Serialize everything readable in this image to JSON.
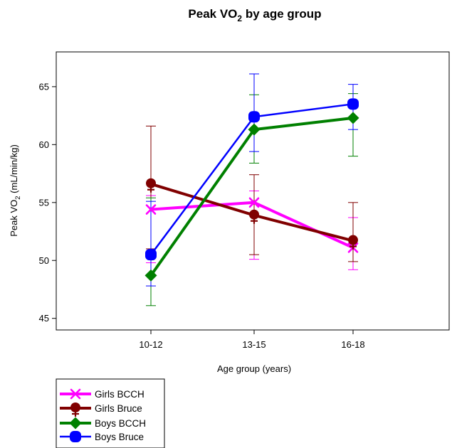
{
  "chart_data": {
    "type": "line",
    "title": {
      "main": "Peak VO",
      "sub": "2",
      "rest": " by age group"
    },
    "xlabel": "Age group (years)",
    "ylabel": {
      "main": "Peak VO",
      "sub": "2",
      "rest": " (mL/min/kg)"
    },
    "categories": [
      "10-12",
      "13-15",
      "16-18"
    ],
    "ylim": [
      44,
      68
    ],
    "yticks": [
      45,
      50,
      55,
      60,
      65
    ],
    "grid": false,
    "legend_position": "bottom-left",
    "series": [
      {
        "name": "Girls BCCH",
        "color": "#ff00ff",
        "marker": "x",
        "values": [
          54.4,
          55.0,
          51.1
        ],
        "err_low": [
          49.8,
          50.1,
          49.2
        ],
        "err_high": [
          55.6,
          56.0,
          53.7
        ]
      },
      {
        "name": "Girls Bruce",
        "color": "#800000",
        "marker": "female",
        "values": [
          56.6,
          53.9,
          51.7
        ],
        "err_low": [
          51.0,
          50.5,
          49.9
        ],
        "err_high": [
          61.6,
          57.4,
          55.0
        ]
      },
      {
        "name": "Boys BCCH",
        "color": "#008000",
        "marker": "diamond",
        "values": [
          48.7,
          61.3,
          62.3
        ],
        "err_low": [
          46.1,
          58.4,
          59.0
        ],
        "err_high": [
          55.4,
          64.3,
          64.4
        ]
      },
      {
        "name": "Boys Bruce",
        "color": "#0000ff",
        "marker": "circle",
        "values": [
          50.5,
          62.4,
          63.5
        ],
        "err_low": [
          47.8,
          59.4,
          61.3
        ],
        "err_high": [
          55.1,
          66.1,
          65.2
        ]
      }
    ]
  }
}
